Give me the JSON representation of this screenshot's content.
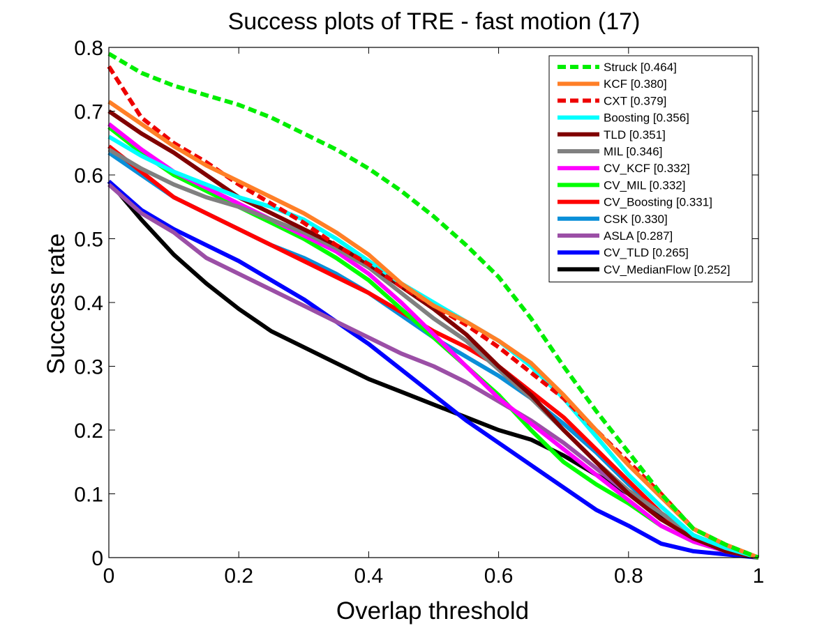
{
  "chart_data": {
    "type": "line",
    "title": "Success plots of TRE - fast motion (17)",
    "xlabel": "Overlap threshold",
    "ylabel": "Success rate",
    "xlim": [
      0,
      1
    ],
    "ylim": [
      0,
      0.8
    ],
    "xticks": [
      "0",
      "0.2",
      "0.4",
      "0.6",
      "0.8",
      "1"
    ],
    "yticks": [
      "0",
      "0.1",
      "0.2",
      "0.3",
      "0.4",
      "0.5",
      "0.6",
      "0.7",
      "0.8"
    ],
    "grid": false,
    "legend_position": "top-right",
    "x": [
      0,
      0.05,
      0.1,
      0.15,
      0.2,
      0.25,
      0.3,
      0.35,
      0.4,
      0.45,
      0.5,
      0.55,
      0.6,
      0.65,
      0.7,
      0.75,
      0.8,
      0.85,
      0.9,
      0.95,
      1.0
    ],
    "series": [
      {
        "name": "Struck [0.464]",
        "color": "#00ee00",
        "dashed": true,
        "values": [
          0.79,
          0.76,
          0.74,
          0.725,
          0.71,
          0.69,
          0.665,
          0.64,
          0.61,
          0.575,
          0.535,
          0.49,
          0.44,
          0.375,
          0.3,
          0.23,
          0.165,
          0.1,
          0.045,
          0.02,
          0.0
        ]
      },
      {
        "name": "KCF [0.380]",
        "color": "#ff7f27",
        "dashed": false,
        "values": [
          0.715,
          0.68,
          0.645,
          0.615,
          0.59,
          0.565,
          0.54,
          0.51,
          0.475,
          0.43,
          0.395,
          0.37,
          0.34,
          0.305,
          0.255,
          0.2,
          0.145,
          0.095,
          0.045,
          0.02,
          0.0
        ]
      },
      {
        "name": "CXT [0.379]",
        "color": "#ee0000",
        "dashed": true,
        "values": [
          0.77,
          0.69,
          0.65,
          0.62,
          0.585,
          0.555,
          0.525,
          0.49,
          0.46,
          0.425,
          0.395,
          0.365,
          0.33,
          0.29,
          0.25,
          0.2,
          0.15,
          0.1,
          0.045,
          0.02,
          0.0
        ]
      },
      {
        "name": "Boosting [0.356]",
        "color": "#00ffff",
        "dashed": false,
        "values": [
          0.66,
          0.63,
          0.605,
          0.585,
          0.565,
          0.55,
          0.53,
          0.5,
          0.465,
          0.43,
          0.4,
          0.37,
          0.34,
          0.3,
          0.25,
          0.19,
          0.13,
          0.08,
          0.035,
          0.015,
          0.0
        ]
      },
      {
        "name": "TLD [0.351]",
        "color": "#800000",
        "dashed": false,
        "values": [
          0.7,
          0.665,
          0.635,
          0.6,
          0.565,
          0.54,
          0.515,
          0.49,
          0.46,
          0.425,
          0.39,
          0.35,
          0.3,
          0.255,
          0.2,
          0.15,
          0.1,
          0.06,
          0.03,
          0.01,
          0.0
        ]
      },
      {
        "name": "MIL [0.346]",
        "color": "#808080",
        "dashed": false,
        "values": [
          0.64,
          0.61,
          0.585,
          0.565,
          0.55,
          0.53,
          0.51,
          0.485,
          0.455,
          0.415,
          0.375,
          0.34,
          0.295,
          0.25,
          0.2,
          0.15,
          0.105,
          0.07,
          0.035,
          0.015,
          0.0
        ]
      },
      {
        "name": "CV_KCF [0.332]",
        "color": "#ff00ff",
        "dashed": false,
        "values": [
          0.68,
          0.64,
          0.605,
          0.58,
          0.555,
          0.53,
          0.505,
          0.48,
          0.445,
          0.4,
          0.35,
          0.3,
          0.25,
          0.21,
          0.17,
          0.13,
          0.09,
          0.05,
          0.025,
          0.01,
          0.0
        ]
      },
      {
        "name": "CV_MIL [0.332]",
        "color": "#00ff00",
        "dashed": false,
        "values": [
          0.675,
          0.635,
          0.6,
          0.575,
          0.55,
          0.525,
          0.5,
          0.47,
          0.435,
          0.39,
          0.345,
          0.3,
          0.255,
          0.2,
          0.15,
          0.115,
          0.085,
          0.05,
          0.025,
          0.01,
          0.0
        ]
      },
      {
        "name": "CV_Boosting [0.331]",
        "color": "#ff0000",
        "dashed": false,
        "values": [
          0.645,
          0.605,
          0.565,
          0.54,
          0.515,
          0.49,
          0.465,
          0.44,
          0.415,
          0.385,
          0.355,
          0.33,
          0.3,
          0.26,
          0.22,
          0.17,
          0.12,
          0.07,
          0.03,
          0.01,
          0.0
        ]
      },
      {
        "name": "CSK [0.330]",
        "color": "#0a8fd8",
        "dashed": false,
        "values": [
          0.635,
          0.6,
          0.565,
          0.54,
          0.515,
          0.49,
          0.47,
          0.445,
          0.415,
          0.38,
          0.345,
          0.315,
          0.285,
          0.25,
          0.21,
          0.165,
          0.115,
          0.07,
          0.035,
          0.015,
          0.0
        ]
      },
      {
        "name": "ASLA [0.287]",
        "color": "#9b4fa6",
        "dashed": false,
        "values": [
          0.585,
          0.54,
          0.51,
          0.47,
          0.445,
          0.42,
          0.395,
          0.37,
          0.345,
          0.32,
          0.3,
          0.275,
          0.245,
          0.215,
          0.18,
          0.14,
          0.1,
          0.06,
          0.03,
          0.01,
          0.0
        ]
      },
      {
        "name": "CV_TLD [0.265]",
        "color": "#0000ff",
        "dashed": false,
        "values": [
          0.59,
          0.545,
          0.515,
          0.49,
          0.465,
          0.435,
          0.405,
          0.37,
          0.335,
          0.295,
          0.255,
          0.215,
          0.18,
          0.145,
          0.11,
          0.075,
          0.05,
          0.022,
          0.01,
          0.005,
          0.0
        ]
      },
      {
        "name": "CV_MedianFlow [0.252]",
        "color": "#000000",
        "dashed": false,
        "values": [
          0.59,
          0.53,
          0.475,
          0.43,
          0.39,
          0.355,
          0.33,
          0.305,
          0.28,
          0.26,
          0.24,
          0.22,
          0.2,
          0.185,
          0.16,
          0.13,
          0.1,
          0.065,
          0.035,
          0.015,
          0.0
        ]
      }
    ]
  }
}
